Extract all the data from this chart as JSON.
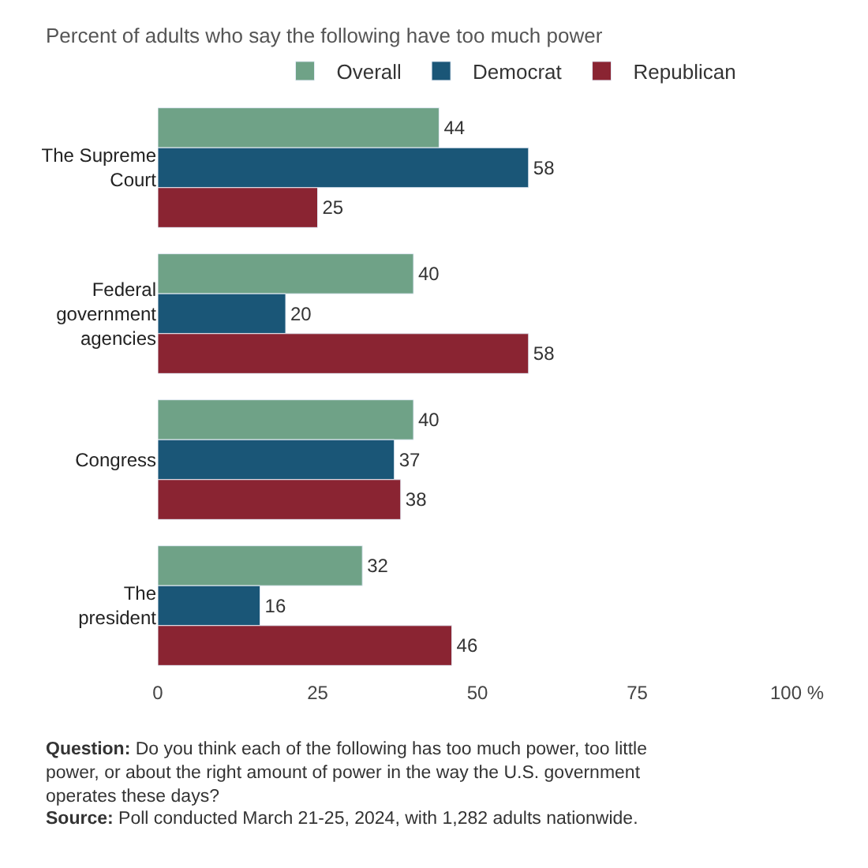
{
  "chart_data": {
    "type": "bar",
    "orientation": "horizontal",
    "subtitle": "Percent of adults who say the following have too much power",
    "categories": [
      "The Supreme Court",
      "Federal government agencies",
      "Congress",
      "The president"
    ],
    "series": [
      {
        "name": "Overall",
        "color": "#6fa287",
        "values": [
          44,
          40,
          40,
          32
        ]
      },
      {
        "name": "Democrat",
        "color": "#1a5677",
        "values": [
          58,
          20,
          37,
          16
        ]
      },
      {
        "name": "Republican",
        "color": "#8a2432",
        "values": [
          25,
          58,
          38,
          46
        ]
      }
    ],
    "xlim": [
      0,
      100
    ],
    "xticks": [
      0,
      25,
      50,
      75,
      {
        "value": 100,
        "label": "100 %"
      }
    ],
    "data_labels": true,
    "legend": "top",
    "annotations": [
      "Question: Do you think each of the following has too much power, too little power, or about the right amount of power in the way the U.S. government operates these days?",
      "Source: Poll conducted March 21-25, 2024, with 1,282 adults nationwide."
    ]
  }
}
